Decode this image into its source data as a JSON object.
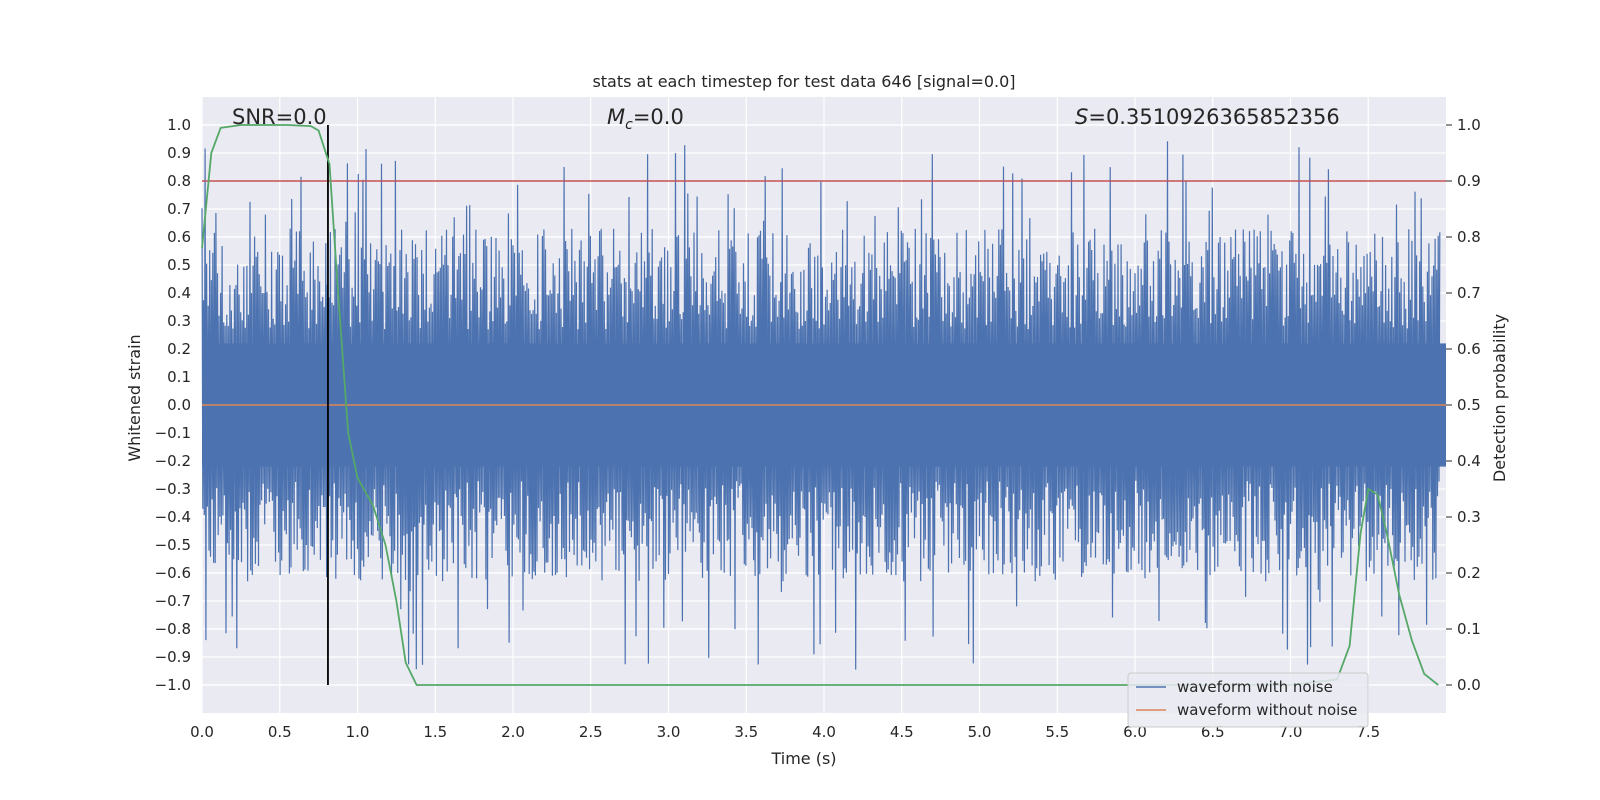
{
  "chart_data": {
    "type": "line",
    "title": "stats at each timestep for test data 646 [signal=0.0]",
    "xlabel": "Time (s)",
    "ylabel": "Whitened strain",
    "y2label": "Detection probability",
    "xlim": [
      0.0,
      8.0
    ],
    "ylim": [
      -1.1,
      1.1
    ],
    "y2lim": [
      -0.05,
      1.05
    ],
    "xticks": [
      "0.0",
      "0.5",
      "1.0",
      "1.5",
      "2.0",
      "2.5",
      "3.0",
      "3.5",
      "4.0",
      "4.5",
      "5.0",
      "5.5",
      "6.0",
      "6.5",
      "7.0",
      "7.5"
    ],
    "yticks": [
      "1.0",
      "0.9",
      "0.8",
      "0.7",
      "0.6",
      "0.5",
      "0.4",
      "0.3",
      "0.2",
      "0.1",
      "0.0",
      "−0.1",
      "−0.2",
      "−0.3",
      "−0.4",
      "−0.5",
      "−0.6",
      "−0.7",
      "−0.8",
      "−0.9",
      "−1.0"
    ],
    "y2ticks": [
      "1.0",
      "0.9",
      "0.8",
      "0.7",
      "0.6",
      "0.5",
      "0.4",
      "0.3",
      "0.2",
      "0.1",
      "0.0"
    ],
    "grid": true,
    "legend_location": "lower-right",
    "annotations": {
      "snr": "SNR=0.0",
      "mc_symbol": "M",
      "mc_subscript": "c",
      "mc_value": "=0.0",
      "s_symbol": "S",
      "s_value": "=0.3510926365852356"
    },
    "series": [
      {
        "name": "waveform with noise",
        "color": "#4c72b0",
        "kind": "noise",
        "typical_amplitude": 0.45,
        "max_amplitude": 0.99,
        "min_value": -0.98
      },
      {
        "name": "waveform without noise",
        "color": "#dd8452",
        "kind": "flat",
        "value": 0.0
      }
    ],
    "threshold": {
      "axis": "y2",
      "value": 0.9,
      "color": "#c44e52"
    },
    "marker_line": {
      "x": 0.81,
      "y_range": [
        -1.0,
        1.0
      ],
      "color": "#000000"
    },
    "detection_probability": {
      "color": "#55a868",
      "x": [
        0.0,
        0.06,
        0.12,
        0.25,
        0.4,
        0.55,
        0.7,
        0.75,
        0.82,
        0.87,
        0.94,
        1.0,
        1.1,
        1.18,
        1.25,
        1.31,
        1.38,
        1.45,
        2.0,
        3.0,
        4.0,
        5.0,
        6.0,
        7.0,
        7.3,
        7.38,
        7.45,
        7.5,
        7.56,
        7.62,
        7.7,
        7.78,
        7.86,
        7.95
      ],
      "y": [
        0.78,
        0.95,
        0.995,
        1.0,
        1.0,
        1.0,
        0.998,
        0.99,
        0.93,
        0.72,
        0.45,
        0.37,
        0.32,
        0.25,
        0.15,
        0.04,
        0.0,
        0.0,
        0.0,
        0.0,
        0.0,
        0.0,
        0.0,
        0.0,
        0.01,
        0.07,
        0.27,
        0.35,
        0.34,
        0.27,
        0.16,
        0.08,
        0.02,
        0.0
      ]
    }
  }
}
